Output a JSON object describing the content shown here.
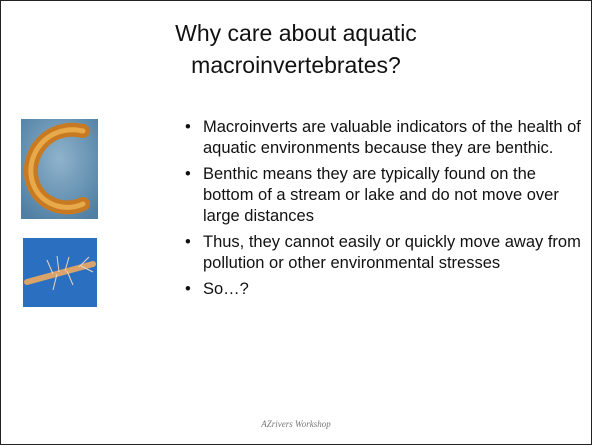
{
  "slide": {
    "title": "Why care about aquatic macroinvertebrates?",
    "bullets": [
      "Macroinverts are valuable indicators of the health of aquatic environments because they are benthic.",
      "Benthic means they are typically found on the bottom of a stream or lake and do not move over large distances",
      "Thus, they cannot easily or quickly move away from pollution or other environmental stresses",
      "So…?"
    ],
    "footer": "AZrivers Workshop"
  }
}
